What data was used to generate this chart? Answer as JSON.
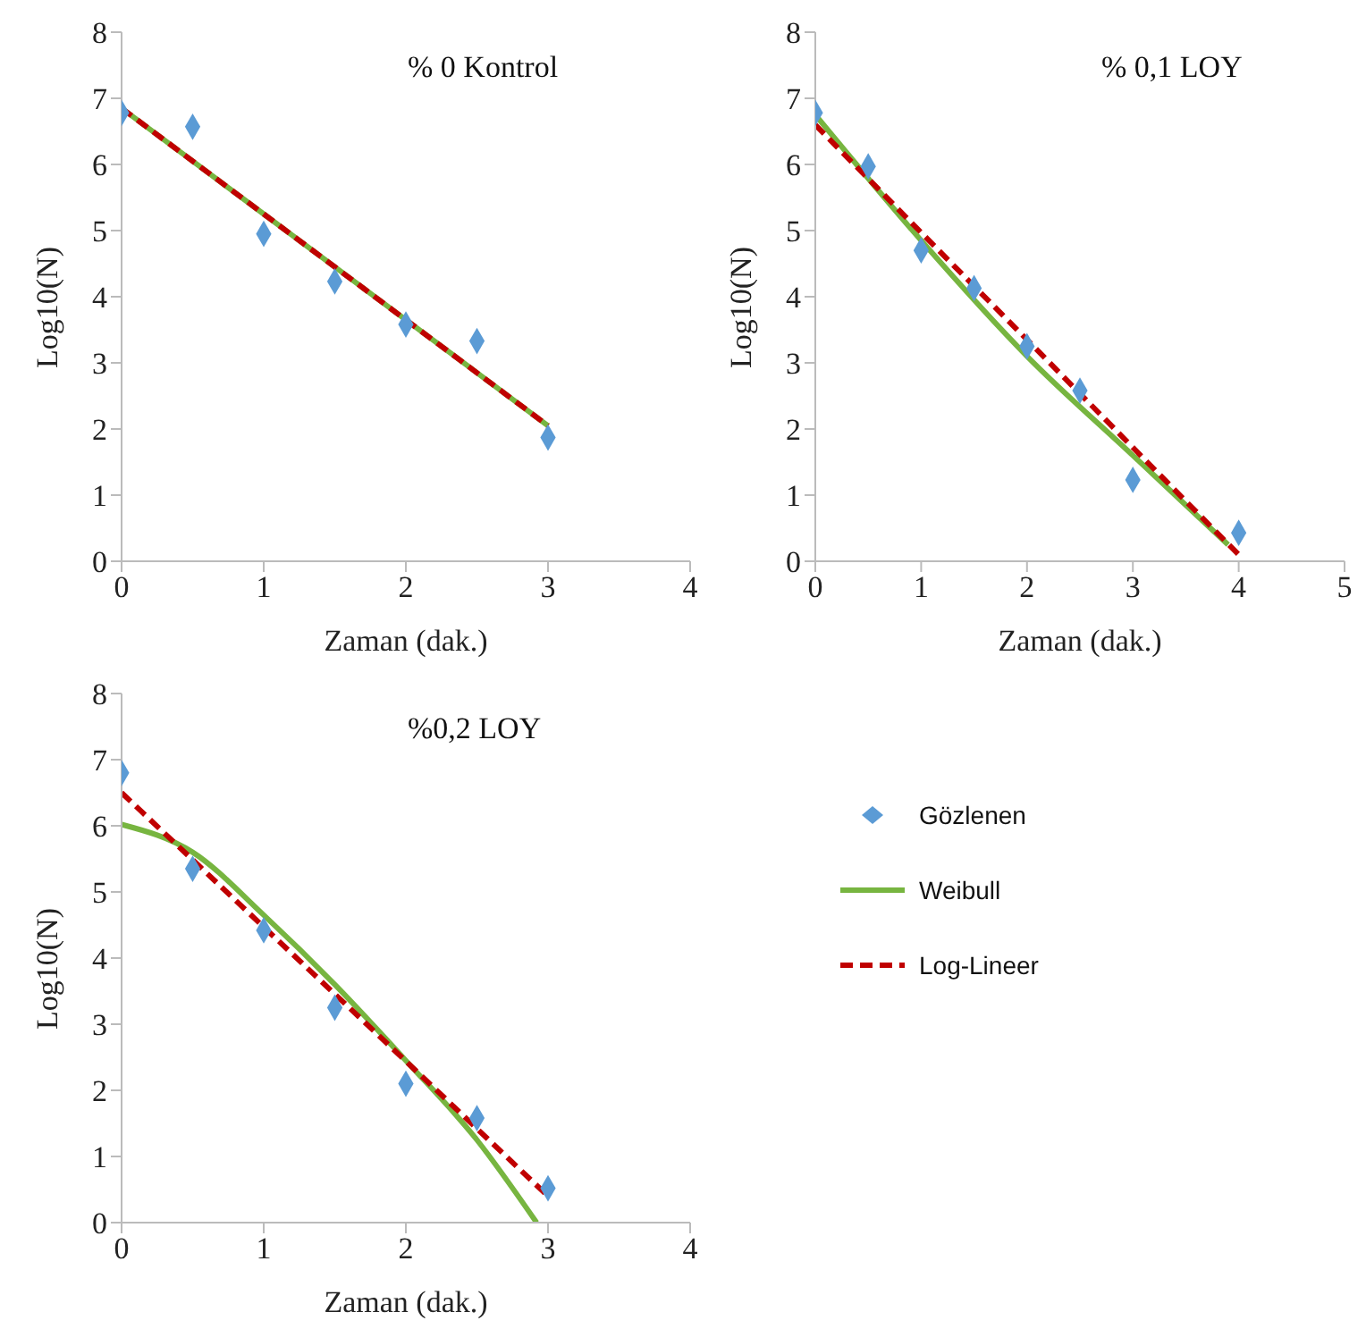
{
  "chart_data": [
    {
      "type": "scatter",
      "title": "% 0 Kontrol",
      "xlabel": "Zaman (dak.)",
      "ylabel": "Log10(N)",
      "xlim": [
        0,
        4
      ],
      "xticks": [
        0,
        1,
        2,
        3,
        4
      ],
      "ylim": [
        0,
        8
      ],
      "yticks": [
        0,
        1,
        2,
        3,
        4,
        5,
        6,
        7,
        8
      ],
      "legend": false,
      "series": [
        {
          "marker": "diamond",
          "color": "#5b9bd5",
          "x": [
            0,
            0.5,
            1,
            1.5,
            2,
            2.5,
            3
          ],
          "values": [
            6.78,
            6.57,
            4.95,
            4.23,
            3.58,
            3.33,
            1.87
          ]
        },
        {
          "type": "line",
          "marker": "none",
          "line_style": "solid",
          "color": "#77b540",
          "x": [
            0,
            1,
            2,
            3
          ],
          "values": [
            6.85,
            5.25,
            3.65,
            2.05
          ]
        },
        {
          "type": "line",
          "marker": "none",
          "line_style": "dashed",
          "color": "#c00000",
          "x": [
            0,
            1,
            2,
            3
          ],
          "values": [
            6.85,
            5.25,
            3.65,
            2.05
          ]
        }
      ]
    },
    {
      "type": "scatter",
      "title": "% 0,1 LOY",
      "xlabel": "Zaman (dak.)",
      "ylabel": "Log10(N)",
      "xlim": [
        0,
        5
      ],
      "xticks": [
        0,
        1,
        2,
        3,
        4,
        5
      ],
      "ylim": [
        0,
        8
      ],
      "yticks": [
        0,
        1,
        2,
        3,
        4,
        5,
        6,
        7,
        8
      ],
      "legend": false,
      "series": [
        {
          "marker": "diamond",
          "color": "#5b9bd5",
          "x": [
            0,
            0.5,
            1,
            1.5,
            2,
            2.5,
            3,
            4
          ],
          "values": [
            6.78,
            5.97,
            4.7,
            4.13,
            3.25,
            2.58,
            1.23,
            0.43
          ]
        },
        {
          "type": "line",
          "marker": "none",
          "line_style": "solid",
          "color": "#77b540",
          "x": [
            0,
            1,
            2,
            3,
            3.9
          ],
          "values": [
            6.75,
            4.85,
            3.1,
            1.6,
            0.25
          ]
        },
        {
          "type": "line",
          "marker": "none",
          "line_style": "dashed",
          "color": "#c00000",
          "x": [
            0,
            1,
            2,
            3,
            4
          ],
          "values": [
            6.6,
            4.97,
            3.35,
            1.72,
            0.1
          ]
        }
      ]
    },
    {
      "type": "scatter",
      "title": "%0,2 LOY",
      "xlabel": "Zaman (dak.)",
      "ylabel": "Log10(N)",
      "xlim": [
        0,
        4
      ],
      "xticks": [
        0,
        1,
        2,
        3,
        4
      ],
      "ylim": [
        0,
        8
      ],
      "yticks": [
        0,
        1,
        2,
        3,
        4,
        5,
        6,
        7,
        8
      ],
      "legend": "right",
      "series": [
        {
          "name": "Gözlenen",
          "marker": "diamond",
          "color": "#5b9bd5",
          "x": [
            0,
            0.5,
            1,
            1.5,
            2,
            2.5,
            3
          ],
          "values": [
            6.8,
            5.35,
            4.42,
            3.25,
            2.1,
            1.58,
            0.52
          ]
        },
        {
          "type": "line",
          "name": "Weibull",
          "marker": "none",
          "line_style": "solid",
          "color": "#77b540",
          "x": [
            0,
            0.5,
            1,
            1.5,
            2,
            2.5,
            2.92
          ],
          "values": [
            6.02,
            5.6,
            4.65,
            3.6,
            2.45,
            1.25,
            0
          ]
        },
        {
          "type": "line",
          "name": "Log-Lineer",
          "marker": "none",
          "line_style": "dashed",
          "color": "#c00000",
          "x": [
            0,
            1,
            2,
            3
          ],
          "values": [
            6.5,
            4.47,
            2.44,
            0.4
          ]
        }
      ]
    }
  ]
}
